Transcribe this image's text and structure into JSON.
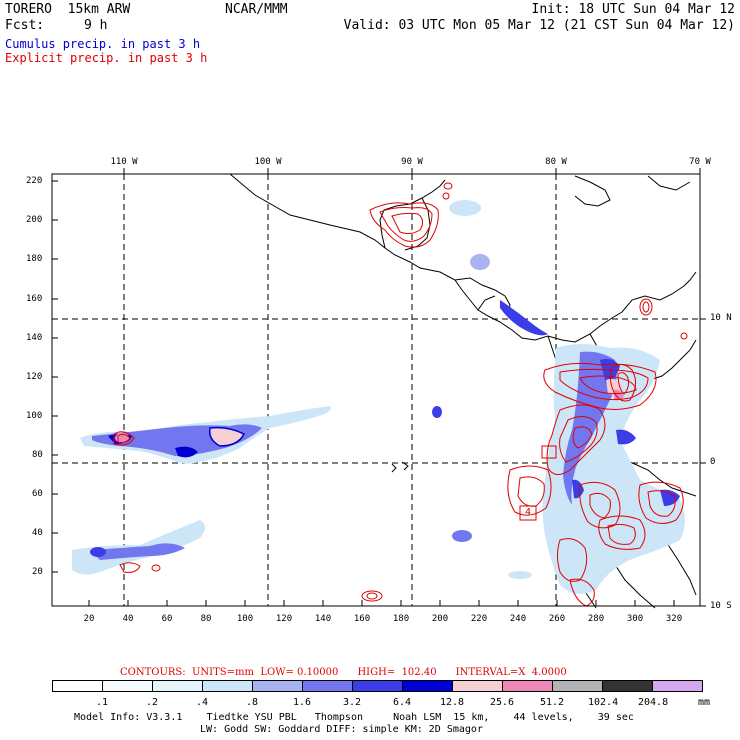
{
  "header": {
    "model": "TORERO  15km ARW",
    "org": "NCAR/MMM",
    "init": "Init: 18 UTC Sun 04 Mar 12",
    "fcst_label": "Fcst:",
    "fcst_value": "9 h",
    "valid": "Valid: 03 UTC Mon 05 Mar 12 (21 CST Sun 04 Mar 12)"
  },
  "legend": {
    "cumulus": "Cumulus precip. in past 3 h",
    "explicit": "Explicit precip. in past 3 h"
  },
  "map": {
    "top_labels": [
      "110 W",
      "100 W",
      "90 W",
      "80 W",
      "70 W"
    ],
    "right_labels": [
      "10 N",
      "0",
      "10 S"
    ],
    "y_ticks": [
      "220",
      "200",
      "180",
      "160",
      "140",
      "120",
      "100",
      "80",
      "60",
      "40",
      "20"
    ],
    "x_ticks": [
      "20",
      "40",
      "60",
      "80",
      "100",
      "120",
      "140",
      "160",
      "180",
      "200",
      "220",
      "240",
      "260",
      "280",
      "300",
      "320"
    ],
    "box_label": "4"
  },
  "contours": {
    "label": "CONTOURS:  UNITS=mm  LOW= 0.10000      HIGH=  102.40      INTERVAL=X  4.0000"
  },
  "colorbar": {
    "unit": "mm",
    "labels": [
      ".1",
      ".2",
      ".4",
      ".8",
      "1.6",
      "3.2",
      "6.4",
      "12.8",
      "25.6",
      "51.2",
      "102.4",
      "204.8"
    ],
    "colors": [
      "#ffffff",
      "#f4fbff",
      "#e4f6fb",
      "#cce6f7",
      "#aab3f2",
      "#7276ef",
      "#3b3de8",
      "#0000d2",
      "#f6cfd4",
      "#ee88b8",
      "#b3b3b3",
      "#333333",
      "#d5a8ee"
    ]
  },
  "footer": {
    "line1": "Model Info: V3.3.1    Tiedtke YSU PBL   Thompson     Noah LSM  15 km,    44 levels,    39 sec",
    "line2": "LW: Godd SW: Goddard DIFF: simple KM: 2D Smagor"
  }
}
